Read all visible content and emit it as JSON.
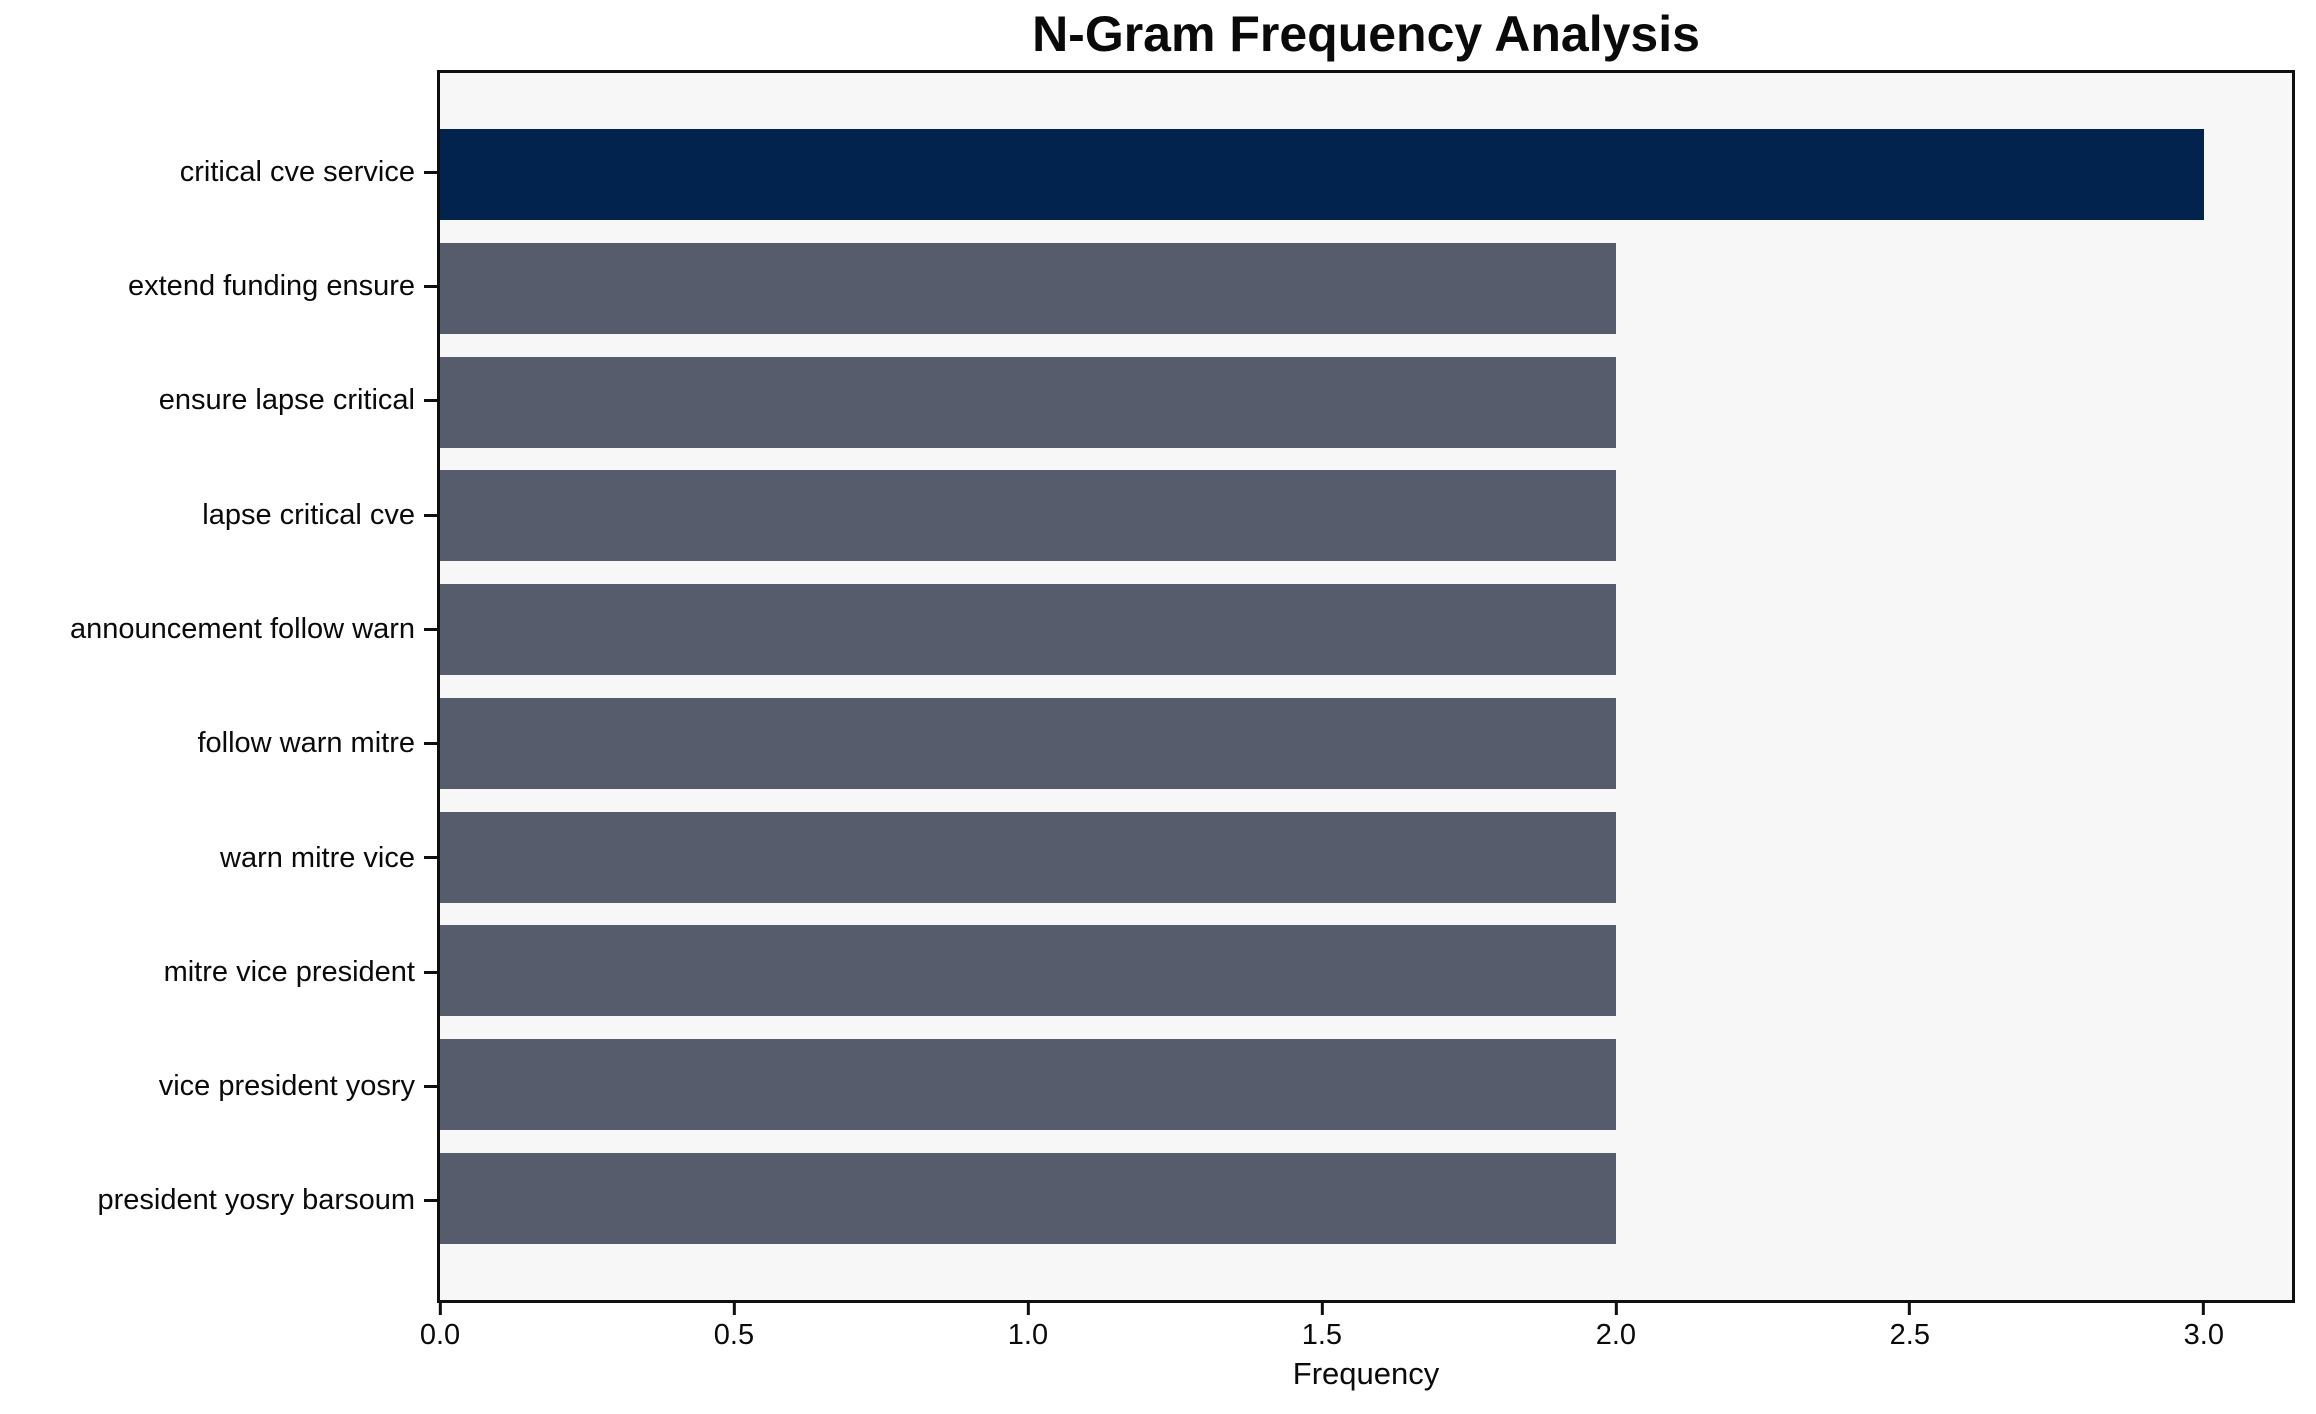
{
  "chart_data": {
    "type": "bar",
    "orientation": "horizontal",
    "title": "N-Gram Frequency Analysis",
    "xlabel": "Frequency",
    "ylabel": "",
    "categories": [
      "critical cve service",
      "extend funding ensure",
      "ensure lapse critical",
      "lapse critical cve",
      "announcement follow warn",
      "follow warn mitre",
      "warn mitre vice",
      "mitre vice president",
      "vice president yosry",
      "president yosry barsoum"
    ],
    "values": [
      3,
      2,
      2,
      2,
      2,
      2,
      2,
      2,
      2,
      2
    ],
    "xlim": [
      0,
      3.15
    ],
    "xtick_values": [
      0,
      0.5,
      1.0,
      1.5,
      2.0,
      2.5,
      3.0
    ],
    "xtick_labels": [
      "0.0",
      "0.5",
      "1.0",
      "1.5",
      "2.0",
      "2.5",
      "3.0"
    ],
    "grid": false,
    "legend": false,
    "colors": {
      "bar_highlight": "#02234E",
      "bar_default": "#565C6C",
      "plot_background": "#F7F7F7",
      "spine": "#0F0F0F",
      "text": "#0A0A0A"
    },
    "highlight_index": 0
  }
}
